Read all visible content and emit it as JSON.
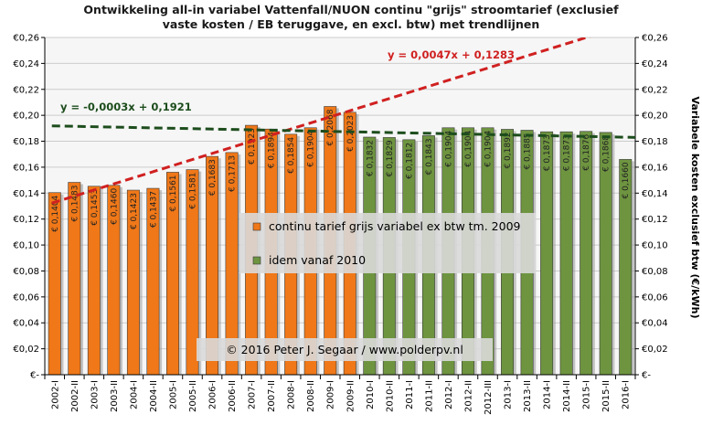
{
  "title_line1": "Ontwikkeling  all-in variabel Vattenfall/NUON  continu \"grijs\"  stroomtarief (exclusief",
  "title_line2": "vaste kosten / EB teruggave, en excl. btw)  met trendlijnen",
  "y_axis_right_label": "Variabele kosten exclusief btw (€/kWh)",
  "legend": {
    "series1": "continu tarief grijs variabel ex btw tm. 2009",
    "series2": "idem vanaf 2010"
  },
  "copyright": "© 2016 Peter J. Segaar / www.polderpv.nl",
  "trend1_label": "y = 0,0047x + 0,1283",
  "trend2_label": "y = -0,0003x + 0,1921",
  "colors": {
    "orange": "#f07818",
    "green": "#6e9440",
    "trend_red": "#d02020",
    "trend_green": "#1d4d1d",
    "grid": "#cccccc"
  },
  "chart_data": {
    "type": "bar",
    "ylim": [
      0,
      0.26
    ],
    "ytick_labels": [
      "€-",
      "€0,02",
      "€0,04",
      "€0,06",
      "€0,08",
      "€0,10",
      "€0,12",
      "€0,14",
      "€0,16",
      "€0,18",
      "€0,20",
      "€0,22",
      "€0,24",
      "€0,26"
    ],
    "categories": [
      "2002-I",
      "2002-II",
      "2003-I",
      "2003-II",
      "2004-I",
      "2004-II",
      "2005-I",
      "2005-II",
      "2006-I",
      "2006-II",
      "2007-I",
      "2007-II",
      "2008-I",
      "2008-II",
      "2009-I",
      "2009-II",
      "2010-I",
      "2010-II",
      "2011-I",
      "2011-II",
      "2012-I",
      "2012-II",
      "2012-III",
      "2013-I",
      "2013-II",
      "2014-I",
      "2014-II",
      "2015-I",
      "2015-II",
      "2016-I"
    ],
    "values": [
      0.1404,
      0.1483,
      0.1453,
      0.146,
      0.1423,
      0.1437,
      0.1561,
      0.1581,
      0.1683,
      0.1713,
      0.1923,
      0.1894,
      0.1854,
      0.1904,
      0.2068,
      0.2023,
      0.1832,
      0.1829,
      0.1812,
      0.1843,
      0.1904,
      0.1904,
      0.1904,
      0.1892,
      0.1885,
      0.1873,
      0.1873,
      0.1876,
      0.1868,
      0.166
    ],
    "data_labels": [
      "€ 0,1404",
      "€ 0,1483",
      "€ 0,1453",
      "€ 0,1460",
      "€ 0,1423",
      "€ 0,1437",
      "€ 0,1561",
      "€ 0,1581",
      "€ 0,1683",
      "€ 0,1713",
      "€ 0,1923",
      "€ 0,1894",
      "€ 0,1854",
      "€ 0,1904",
      "€ 0,2068",
      "€ 0,2023",
      "€ 0,1832",
      "€ 0,1829",
      "€ 0,1812",
      "€ 0,1843",
      "€ 0,1904",
      "€ 0,1904",
      "€ 0,1904",
      "€ 0,1892",
      "€ 0,1885",
      "€ 0,1873",
      "€ 0,1873",
      "€ 0,1876",
      "€ 0,1868",
      "€ 0,1660"
    ],
    "series_split_index": 16,
    "trendlines": [
      {
        "slope": 0.0047,
        "intercept": 0.1283,
        "from_index": 0
      },
      {
        "slope": -0.0003,
        "intercept": 0.1921,
        "from_index": 0
      }
    ],
    "grid": true
  }
}
